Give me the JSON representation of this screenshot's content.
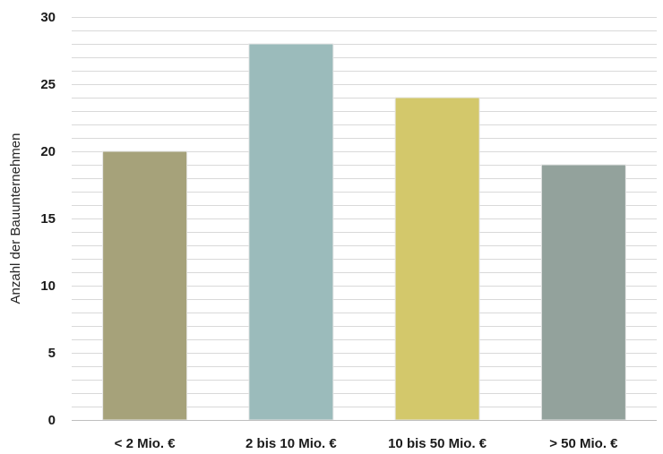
{
  "chart_data": {
    "type": "bar",
    "categories": [
      "< 2 Mio. €",
      "2 bis 10 Mio. €",
      "10 bis 50 Mio. €",
      "> 50 Mio. €"
    ],
    "values": [
      20,
      28,
      24,
      19
    ],
    "ylabel": "Anzahl der Bauunternehmen",
    "xlabel": "",
    "ylim": [
      0,
      30
    ],
    "yticks": [
      "0",
      "5",
      "10",
      "15",
      "20",
      "25",
      "30"
    ],
    "grid": true,
    "minor_grid_step": 1,
    "legend": "none",
    "colors": [
      "#a6a27a",
      "#9bbbbb",
      "#d3c86b",
      "#93a29c"
    ],
    "grid_color": "#d9d9d9",
    "axis_color": "#bfbfbf"
  }
}
